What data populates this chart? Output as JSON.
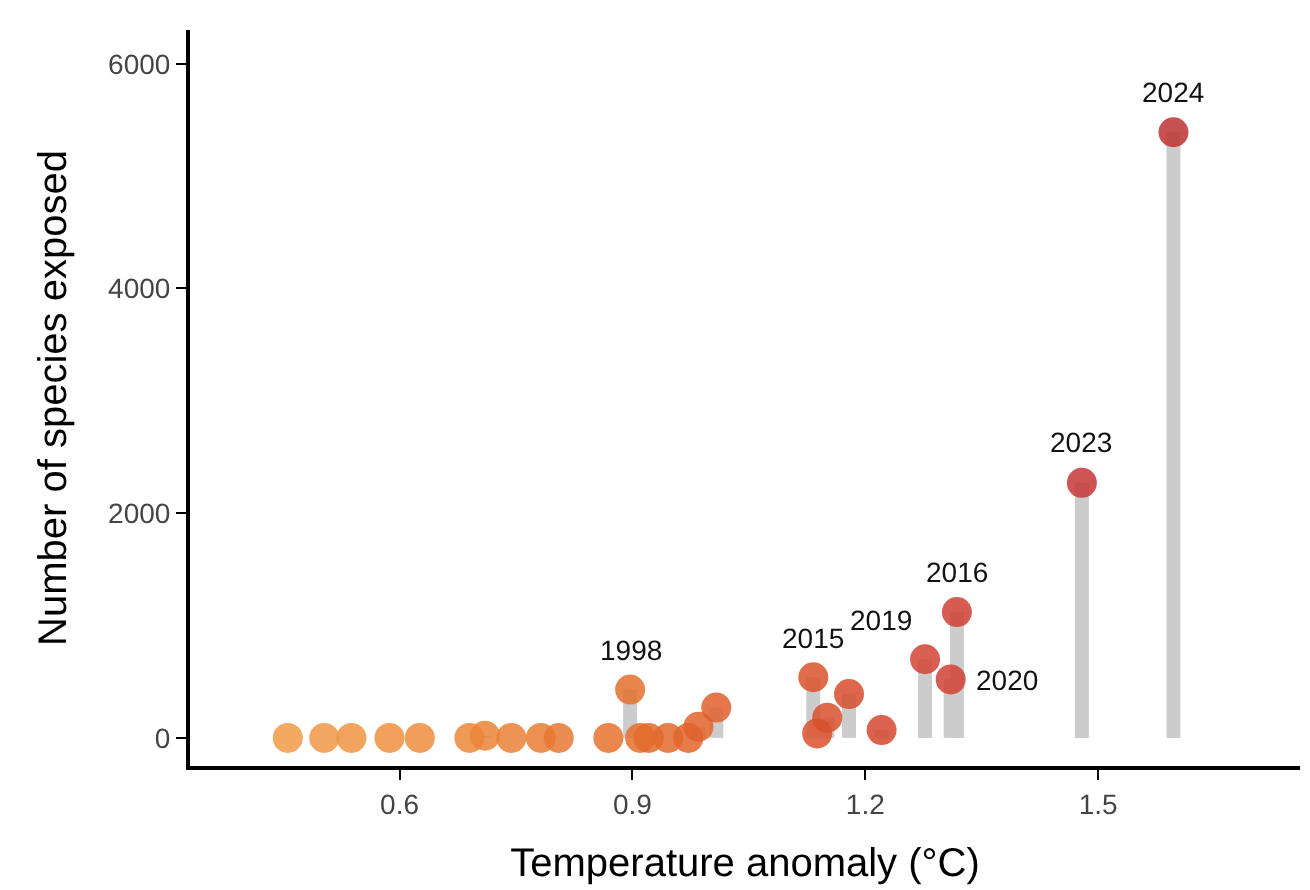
{
  "chart_data": {
    "type": "lollipop",
    "xlabel": "Temperature anomaly (°C)",
    "ylabel": "Number of species exposed",
    "x": [
      0.456,
      0.503,
      0.538,
      0.587,
      0.626,
      0.69,
      0.71,
      0.744,
      0.782,
      0.805,
      0.869,
      0.897,
      0.91,
      0.921,
      0.946,
      0.972,
      0.985,
      1.008,
      1.133,
      1.138,
      1.151,
      1.179,
      1.221,
      1.277,
      1.31,
      1.318,
      1.479,
      1.597
    ],
    "series": [
      {
        "values": [
          0,
          0,
          0,
          0,
          0,
          0,
          20,
          0,
          0,
          0,
          0,
          430,
          0,
          0,
          0,
          0,
          100,
          270,
          540,
          40,
          180,
          390,
          70,
          700,
          520,
          1120,
          2270,
          5390
        ],
        "colors": [
          "#f29a48",
          "#f19745",
          "#f09443",
          "#ef9141",
          "#ee8d3e",
          "#ec8739",
          "#eb8437",
          "#ea8035",
          "#e87c33",
          "#e77931",
          "#e5722e",
          "#e4702d",
          "#e36d2c",
          "#e36b2b",
          "#e2682b",
          "#e1652a",
          "#e0632a",
          "#df602a",
          "#d9522c",
          "#d9512c",
          "#d84f2d",
          "#d74c2e",
          "#d5482f",
          "#d24331",
          "#d04033",
          "#cf3f33",
          "#c63737",
          "#bd3333"
        ]
      }
    ],
    "annotations": [
      {
        "text": "1998",
        "x": 0.897,
        "y": 430
      },
      {
        "text": "2015",
        "x": 1.133,
        "y": 540
      },
      {
        "text": "2019",
        "x": 1.277,
        "y": 700
      },
      {
        "text": "2020",
        "x": 1.31,
        "y": 520
      },
      {
        "text": "2016",
        "x": 1.318,
        "y": 1120
      },
      {
        "text": "2023",
        "x": 1.479,
        "y": 2270
      },
      {
        "text": "2024",
        "x": 1.597,
        "y": 5390
      }
    ],
    "xlim": [
      0.33,
      1.76
    ],
    "xticks": [
      {
        "value": 0.6,
        "label": "0.6"
      },
      {
        "value": 0.9,
        "label": "0.9"
      },
      {
        "value": 1.2,
        "label": "1.2"
      },
      {
        "value": 1.5,
        "label": "1.5"
      }
    ],
    "ylim": [
      -250,
      6300
    ],
    "yticks": [
      0,
      2000,
      4000,
      6000
    ],
    "marker": "circle"
  }
}
